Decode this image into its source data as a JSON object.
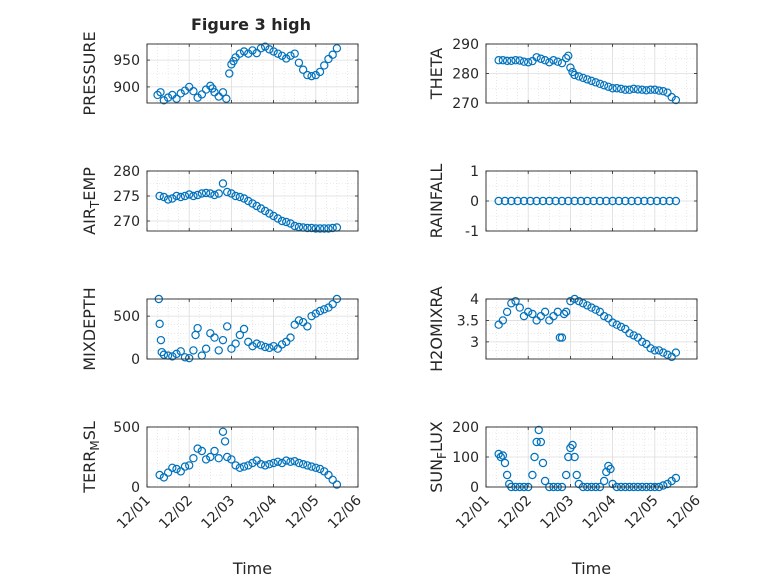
{
  "figure": {
    "title": "Figure 3 high",
    "xlabel": "Time",
    "x_ticks": [
      "12/01",
      "12/02",
      "12/03",
      "12/04",
      "12/05",
      "12/06"
    ],
    "marker_color": "#0072BD"
  },
  "chart_data": [
    {
      "type": "scatter",
      "ylabel": "PRESSURE",
      "ylim": [
        870,
        980
      ],
      "yticks": [
        900,
        950
      ],
      "grid": true,
      "x_unit": "days since 12/01 00:00",
      "x": [
        0.25,
        0.32,
        0.4,
        0.5,
        0.6,
        0.7,
        0.8,
        0.9,
        1.0,
        1.1,
        1.2,
        1.3,
        1.4,
        1.5,
        1.55,
        1.6,
        1.7,
        1.8,
        1.88,
        1.95,
        2.0,
        2.05,
        2.1,
        2.2,
        2.3,
        2.4,
        2.5,
        2.6,
        2.7,
        2.8,
        2.9,
        3.0,
        3.1,
        3.2,
        3.3,
        3.4,
        3.5,
        3.6,
        3.7,
        3.8,
        3.9,
        4.0,
        4.1,
        4.2,
        4.3,
        4.4,
        4.5
      ],
      "y": [
        885,
        890,
        875,
        880,
        885,
        878,
        888,
        893,
        900,
        892,
        880,
        886,
        895,
        902,
        897,
        890,
        882,
        890,
        878,
        925,
        942,
        948,
        955,
        962,
        966,
        962,
        968,
        963,
        972,
        975,
        970,
        966,
        962,
        958,
        953,
        958,
        962,
        945,
        932,
        922,
        920,
        922,
        928,
        940,
        952,
        960,
        972
      ]
    },
    {
      "type": "scatter",
      "ylabel": "THETA",
      "ylim": [
        270,
        290
      ],
      "yticks": [
        270,
        280,
        290
      ],
      "grid": true,
      "x": [
        0.3,
        0.4,
        0.5,
        0.6,
        0.7,
        0.8,
        0.9,
        1.0,
        1.1,
        1.2,
        1.3,
        1.4,
        1.5,
        1.6,
        1.7,
        1.8,
        1.9,
        1.95,
        2.0,
        2.05,
        2.1,
        2.2,
        2.3,
        2.4,
        2.5,
        2.6,
        2.7,
        2.8,
        2.9,
        3.0,
        3.1,
        3.2,
        3.3,
        3.4,
        3.5,
        3.6,
        3.7,
        3.8,
        3.9,
        4.0,
        4.1,
        4.2,
        4.3,
        4.4,
        4.5
      ],
      "y": [
        284.5,
        284.5,
        284.3,
        284.3,
        284.5,
        284.4,
        284.0,
        283.8,
        284.2,
        285.5,
        285.0,
        284.5,
        283.8,
        284.5,
        284.0,
        283.5,
        285.2,
        286.0,
        282.0,
        280.5,
        279.5,
        279.0,
        278.5,
        278.0,
        277.5,
        277.0,
        276.5,
        276.0,
        275.5,
        275.0,
        275.0,
        274.8,
        274.5,
        274.5,
        274.8,
        274.6,
        274.5,
        274.3,
        274.5,
        274.5,
        274.2,
        274.0,
        273.5,
        272.0,
        271.0
      ]
    },
    {
      "type": "scatter",
      "ylabel": "AIR",
      "ylabel_sub": "T",
      "ylabel_rest": "EMP",
      "ylim": [
        268,
        280
      ],
      "yticks": [
        270,
        275,
        280
      ],
      "grid": true,
      "x": [
        0.3,
        0.4,
        0.5,
        0.6,
        0.7,
        0.8,
        0.9,
        1.0,
        1.1,
        1.2,
        1.3,
        1.4,
        1.5,
        1.6,
        1.7,
        1.8,
        1.9,
        2.0,
        2.1,
        2.2,
        2.3,
        2.4,
        2.5,
        2.6,
        2.7,
        2.8,
        2.9,
        3.0,
        3.1,
        3.2,
        3.3,
        3.4,
        3.5,
        3.6,
        3.7,
        3.8,
        3.9,
        4.0,
        4.1,
        4.2,
        4.3,
        4.4,
        4.5
      ],
      "y": [
        275.0,
        274.8,
        274.3,
        274.5,
        275.0,
        274.8,
        275.0,
        275.3,
        275.0,
        275.2,
        275.5,
        275.6,
        275.5,
        275.2,
        275.5,
        277.5,
        275.8,
        275.5,
        275.0,
        274.8,
        274.5,
        274.0,
        273.5,
        273.0,
        272.5,
        272.0,
        271.5,
        271.0,
        270.5,
        270.0,
        269.8,
        269.5,
        269.0,
        268.8,
        268.7,
        268.6,
        268.6,
        268.5,
        268.5,
        268.5,
        268.5,
        268.6,
        268.7
      ]
    },
    {
      "type": "scatter",
      "ylabel": "RAINFALL",
      "ylim": [
        -1,
        1
      ],
      "yticks": [
        -1,
        0,
        1
      ],
      "grid": true,
      "x": [
        0.3,
        0.45,
        0.6,
        0.75,
        0.9,
        1.05,
        1.2,
        1.35,
        1.5,
        1.65,
        1.8,
        1.95,
        2.1,
        2.25,
        2.4,
        2.55,
        2.7,
        2.85,
        3.0,
        3.15,
        3.3,
        3.45,
        3.6,
        3.75,
        3.9,
        4.05,
        4.2,
        4.35,
        4.5
      ],
      "y": [
        0,
        0,
        0,
        0,
        0,
        0,
        0,
        0,
        0,
        0,
        0,
        0,
        0,
        0,
        0,
        0,
        0,
        0,
        0,
        0,
        0,
        0,
        0,
        0,
        0,
        0,
        0,
        0,
        0
      ]
    },
    {
      "type": "scatter",
      "ylabel": "MIXDEPTH",
      "ylim": [
        0,
        700
      ],
      "yticks": [
        0,
        500
      ],
      "grid": true,
      "x": [
        0.28,
        0.3,
        0.33,
        0.35,
        0.4,
        0.5,
        0.6,
        0.7,
        0.8,
        0.9,
        1.0,
        1.1,
        1.15,
        1.2,
        1.3,
        1.4,
        1.5,
        1.6,
        1.7,
        1.8,
        1.9,
        2.0,
        2.1,
        2.2,
        2.3,
        2.4,
        2.5,
        2.6,
        2.7,
        2.8,
        2.9,
        3.0,
        3.1,
        3.2,
        3.3,
        3.4,
        3.5,
        3.6,
        3.7,
        3.8,
        3.9,
        4.0,
        4.1,
        4.2,
        4.3,
        4.4,
        4.5
      ],
      "y": [
        700,
        410,
        220,
        80,
        50,
        40,
        30,
        60,
        90,
        20,
        10,
        100,
        280,
        360,
        40,
        120,
        300,
        250,
        100,
        220,
        380,
        120,
        180,
        280,
        350,
        200,
        150,
        180,
        160,
        140,
        130,
        150,
        120,
        170,
        200,
        250,
        400,
        450,
        430,
        380,
        500,
        530,
        560,
        580,
        600,
        640,
        700
      ]
    },
    {
      "type": "scatter",
      "ylabel": "H2OMIXRA",
      "ylim": [
        2.6,
        4.0
      ],
      "yticks": [
        3,
        3.5,
        4
      ],
      "grid": true,
      "x": [
        0.3,
        0.4,
        0.5,
        0.6,
        0.7,
        0.8,
        0.9,
        1.0,
        1.1,
        1.2,
        1.3,
        1.4,
        1.5,
        1.6,
        1.7,
        1.75,
        1.8,
        1.85,
        1.9,
        2.0,
        2.1,
        2.2,
        2.3,
        2.4,
        2.5,
        2.6,
        2.7,
        2.8,
        2.9,
        3.0,
        3.1,
        3.2,
        3.3,
        3.4,
        3.5,
        3.6,
        3.7,
        3.8,
        3.9,
        4.0,
        4.1,
        4.2,
        4.3,
        4.4,
        4.5
      ],
      "y": [
        3.4,
        3.5,
        3.7,
        3.9,
        3.95,
        3.8,
        3.6,
        3.7,
        3.65,
        3.5,
        3.6,
        3.7,
        3.5,
        3.6,
        3.7,
        3.1,
        3.1,
        3.65,
        3.7,
        3.95,
        4.0,
        3.95,
        3.9,
        3.85,
        3.8,
        3.75,
        3.7,
        3.6,
        3.55,
        3.45,
        3.4,
        3.35,
        3.3,
        3.2,
        3.15,
        3.1,
        3.0,
        2.95,
        2.85,
        2.8,
        2.8,
        2.75,
        2.7,
        2.65,
        2.75
      ]
    },
    {
      "type": "scatter",
      "ylabel": "TERR",
      "ylabel_sub": "M",
      "ylabel_rest": "SL",
      "ylim": [
        0,
        500
      ],
      "yticks": [
        0,
        500
      ],
      "grid": true,
      "x": [
        0.3,
        0.4,
        0.5,
        0.6,
        0.7,
        0.8,
        0.9,
        1.0,
        1.1,
        1.2,
        1.3,
        1.4,
        1.5,
        1.6,
        1.7,
        1.8,
        1.85,
        1.9,
        2.0,
        2.1,
        2.2,
        2.3,
        2.4,
        2.5,
        2.6,
        2.7,
        2.8,
        2.9,
        3.0,
        3.1,
        3.2,
        3.3,
        3.4,
        3.5,
        3.6,
        3.7,
        3.8,
        3.9,
        4.0,
        4.1,
        4.2,
        4.3,
        4.4,
        4.5
      ],
      "y": [
        100,
        80,
        120,
        160,
        150,
        130,
        170,
        180,
        240,
        320,
        300,
        230,
        250,
        300,
        240,
        460,
        380,
        250,
        230,
        180,
        160,
        170,
        180,
        200,
        220,
        190,
        180,
        190,
        200,
        210,
        200,
        220,
        210,
        215,
        200,
        190,
        180,
        170,
        160,
        150,
        130,
        100,
        60,
        20
      ]
    },
    {
      "type": "scatter",
      "ylabel": "SUN",
      "ylabel_sub": "F",
      "ylabel_rest": "LUX",
      "ylim": [
        0,
        200
      ],
      "yticks": [
        0,
        100,
        200
      ],
      "grid": true,
      "x": [
        0.3,
        0.35,
        0.4,
        0.45,
        0.5,
        0.55,
        0.6,
        0.7,
        0.8,
        0.9,
        1.0,
        1.1,
        1.15,
        1.2,
        1.25,
        1.3,
        1.35,
        1.4,
        1.5,
        1.6,
        1.7,
        1.8,
        1.9,
        1.95,
        2.0,
        2.05,
        2.1,
        2.15,
        2.2,
        2.3,
        2.4,
        2.5,
        2.6,
        2.7,
        2.8,
        2.85,
        2.9,
        2.95,
        3.0,
        3.1,
        3.2,
        3.3,
        3.4,
        3.5,
        3.6,
        3.7,
        3.8,
        3.9,
        4.0,
        4.1,
        4.2,
        4.3,
        4.4,
        4.5
      ],
      "y": [
        110,
        100,
        105,
        80,
        40,
        10,
        0,
        0,
        0,
        0,
        0,
        40,
        100,
        150,
        190,
        150,
        80,
        20,
        0,
        0,
        0,
        0,
        40,
        100,
        130,
        140,
        100,
        40,
        10,
        0,
        0,
        0,
        0,
        0,
        20,
        50,
        70,
        60,
        10,
        0,
        0,
        0,
        0,
        0,
        0,
        0,
        0,
        0,
        0,
        0,
        5,
        10,
        20,
        30
      ]
    }
  ]
}
